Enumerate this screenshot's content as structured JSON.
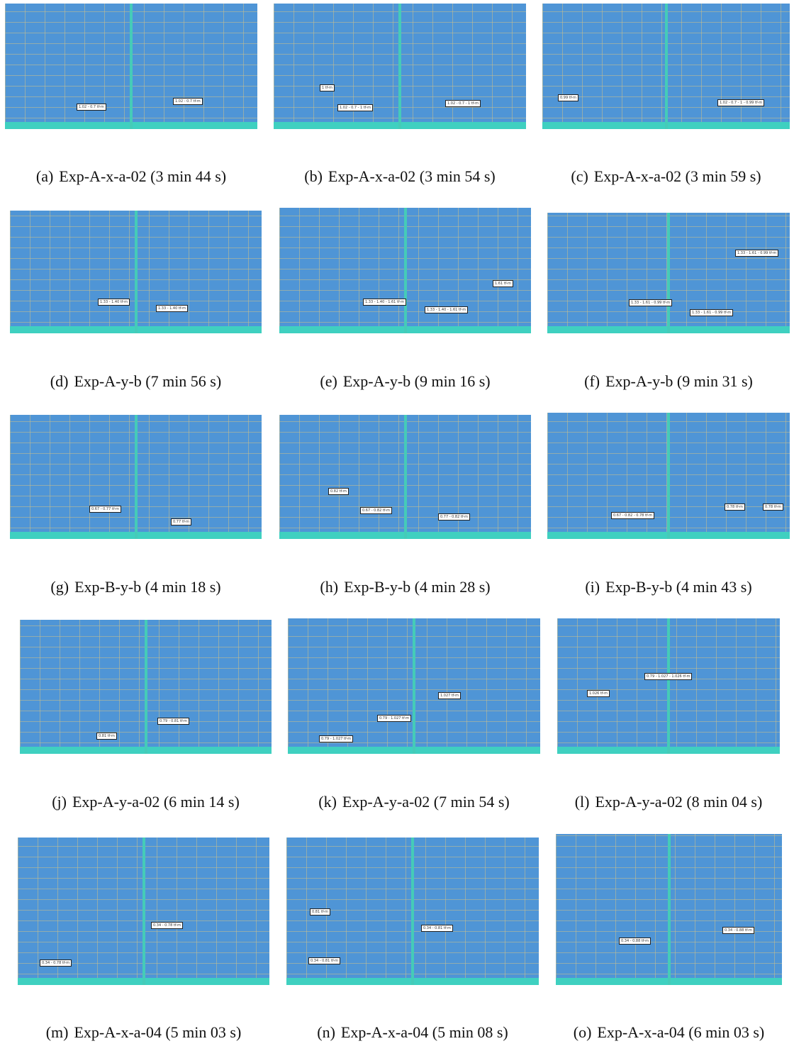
{
  "panels": [
    {
      "label": "(a)",
      "caption": "Exp-A-x-a-02 (3 min 44 s)",
      "tags": [
        "1.02 - 0.7 tf-m",
        "1.02 - 0.7 tf-m"
      ]
    },
    {
      "label": "(b)",
      "caption": "Exp-A-x-a-02 (3 min 54 s)",
      "tags": [
        "1 tf-m",
        "1.02 - 0.7 - 1 tf-m",
        "1.02 - 0.7 - 1 tf-m"
      ]
    },
    {
      "label": "(c)",
      "caption": "Exp-A-x-a-02 (3 min 59 s)",
      "tags": [
        "0.99 tf-m",
        "1.02 - 0.7 - 1 - 0.99 tf-m"
      ]
    },
    {
      "label": "(d)",
      "caption": "Exp-A-y-b (7 min 56 s)",
      "tags": [
        "1.33 - 1.40 tf-m",
        "1.33 - 1.40 tf-m"
      ]
    },
    {
      "label": "(e)",
      "caption": "Exp-A-y-b (9 min 16 s)",
      "tags": [
        "1.61 tf-m",
        "1.33 - 1.40 - 1.61 tf-m",
        "1.33 - 1.40 - 1.61 tf-m"
      ]
    },
    {
      "label": "(f)",
      "caption": "Exp-A-y-b (9 min 31 s)",
      "tags": [
        "1.33 - 1.61 - 0.99 tf-m",
        "1.33 - 1.61 - 0.99 tf-m",
        "1.33 - 1.61 - 0.99 tf-m"
      ]
    },
    {
      "label": "(g)",
      "caption": "Exp-B-y-b (4 min 18 s)",
      "tags": [
        "0.67 - 0.77 tf-m",
        "0.77 tf-m"
      ]
    },
    {
      "label": "(h)",
      "caption": "Exp-B-y-b (4 min 28 s)",
      "tags": [
        "0.82 tf-m",
        "0.67 - 0.82 tf-m",
        "0.77 - 0.82 tf-m"
      ]
    },
    {
      "label": "(i)",
      "caption": "Exp-B-y-b (4 min 43 s)",
      "tags": [
        "0.67 - 0.82 - 0.78 tf-m",
        "0.78 tf-m",
        "0.78 tf-m"
      ]
    },
    {
      "label": "(j)",
      "caption": "Exp-A-y-a-02 (6 min 14 s)",
      "tags": [
        "0.79 - 0.81 tf-m",
        "0.81 tf-m"
      ]
    },
    {
      "label": "(k)",
      "caption": "Exp-A-y-a-02 (7 min 54 s)",
      "tags": [
        "1.027 tf-m",
        "0.79 - 1.027 tf-m",
        "0.79 - 1.027 tf-m"
      ]
    },
    {
      "label": "(l)",
      "caption": "Exp-A-y-a-02 (8 min 04 s)",
      "tags": [
        "0.79 - 1.027 - 1.026 tf-m",
        "1.026 tf-m"
      ]
    },
    {
      "label": "(m)",
      "caption": "Exp-A-x-a-04 (5 min 03 s)",
      "tags": [
        "0.34 - 0.78 tf-m",
        "0.34 - 0.78 tf-m"
      ]
    },
    {
      "label": "(n)",
      "caption": "Exp-A-x-a-04 (5 min 08 s)",
      "tags": [
        "0.81 tf-m",
        "0.34 - 0.81 tf-m",
        "0.34 - 0.81 tf-m"
      ]
    },
    {
      "label": "(o)",
      "caption": "Exp-A-x-a-04 (6 min 03 s)",
      "tags": [
        "0.34 - 0.88 tf-m",
        "0.34 - 0.88 tf-m"
      ]
    }
  ]
}
